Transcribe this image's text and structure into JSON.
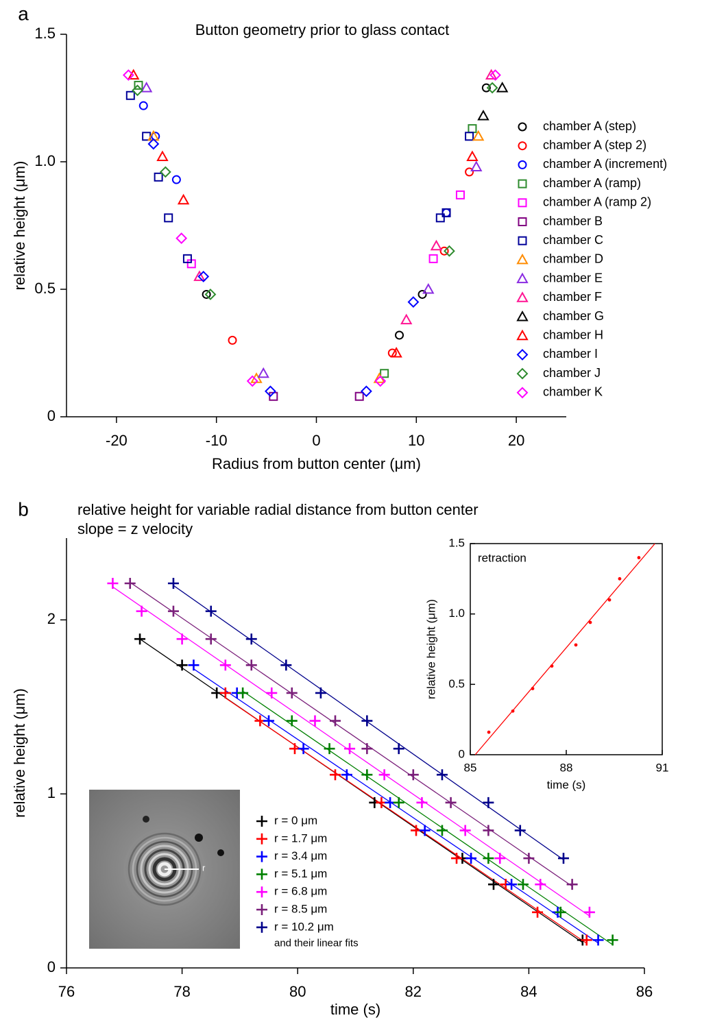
{
  "chart_data": [
    {
      "type": "scatter",
      "panel": "a",
      "title": "Button geometry prior to glass contact",
      "x_label": "Radius from button center (μm)",
      "y_label": "relative height (μm)",
      "xlim": [
        -25,
        25
      ],
      "ylim": [
        0,
        1.5
      ],
      "xticks": [
        -20,
        -10,
        0,
        10,
        20
      ],
      "yticks": [
        0,
        0.5,
        {
          "value": 1,
          "label": "1.0"
        },
        1.5
      ],
      "legend": "right",
      "series": [
        {
          "name": "chamber A (step)",
          "color": "#000000",
          "marker": "circle",
          "x": [
            -11.0,
            8.3,
            10.6,
            17.0
          ],
          "values": [
            0.48,
            0.32,
            0.48,
            1.29
          ]
        },
        {
          "name": "chamber A (step 2)",
          "color": "#ff0000",
          "marker": "circle",
          "x": [
            -8.4,
            7.6,
            12.8,
            15.3
          ],
          "values": [
            0.3,
            0.25,
            0.65,
            0.96
          ]
        },
        {
          "name": "chamber A (increment)",
          "color": "#0000ff",
          "marker": "circle",
          "x": [
            -14.0,
            -16.1,
            -17.3,
            13.0
          ],
          "values": [
            0.93,
            1.1,
            1.22,
            0.8
          ]
        },
        {
          "name": "chamber A (ramp)",
          "color": "#2e8b2e",
          "marker": "square",
          "x": [
            -17.8,
            6.8,
            15.6
          ],
          "values": [
            1.3,
            0.17,
            1.13
          ]
        },
        {
          "name": "chamber A (ramp 2)",
          "color": "#ff00ff",
          "marker": "square",
          "x": [
            -12.5,
            11.7,
            14.4
          ],
          "values": [
            0.6,
            0.62,
            0.87
          ]
        },
        {
          "name": "chamber B",
          "color": "#800080",
          "marker": "square",
          "x": [
            -4.3,
            4.3
          ],
          "values": [
            0.08,
            0.08
          ]
        },
        {
          "name": "chamber C",
          "color": "#000099",
          "marker": "square",
          "x": [
            -18.6,
            -17.0,
            -15.8,
            -14.8,
            -12.9,
            12.4,
            15.3,
            13.0
          ],
          "values": [
            1.26,
            1.1,
            0.94,
            0.78,
            0.62,
            0.78,
            1.1,
            0.8
          ]
        },
        {
          "name": "chamber D",
          "color": "#ff8c00",
          "marker": "triangle",
          "x": [
            -16.3,
            -6.0,
            6.3,
            16.2
          ],
          "values": [
            1.1,
            0.15,
            0.15,
            1.1
          ]
        },
        {
          "name": "chamber E",
          "color": "#8a2be2",
          "marker": "triangle",
          "x": [
            -17.0,
            -5.3,
            11.2,
            16.0
          ],
          "values": [
            1.29,
            0.17,
            0.5,
            0.98
          ]
        },
        {
          "name": "chamber F",
          "color": "#ff1493",
          "marker": "triangle",
          "x": [
            -11.7,
            9.0,
            12.0,
            17.5
          ],
          "values": [
            0.55,
            0.38,
            0.67,
            1.34
          ]
        },
        {
          "name": "chamber G",
          "color": "#000000",
          "marker": "triangle",
          "x": [
            18.6,
            16.7
          ],
          "values": [
            1.29,
            1.18
          ]
        },
        {
          "name": "chamber H",
          "color": "#ff0000",
          "marker": "triangle",
          "x": [
            -18.3,
            -15.4,
            -13.3,
            15.6,
            8.0
          ],
          "values": [
            1.34,
            1.02,
            0.85,
            1.02,
            0.25
          ]
        },
        {
          "name": "chamber I",
          "color": "#0000ff",
          "marker": "diamond",
          "x": [
            -4.6,
            -16.3,
            -11.3,
            5.0,
            9.7
          ],
          "values": [
            0.1,
            1.07,
            0.55,
            0.1,
            0.45
          ]
        },
        {
          "name": "chamber J",
          "color": "#2e8b2e",
          "marker": "diamond",
          "x": [
            -17.9,
            -15.1,
            -10.6,
            13.3,
            17.6
          ],
          "values": [
            1.28,
            0.96,
            0.48,
            0.65,
            1.29
          ]
        },
        {
          "name": "chamber K",
          "color": "#ff00ff",
          "marker": "diamond",
          "x": [
            -18.8,
            -13.5,
            -6.4,
            6.4,
            17.9
          ],
          "values": [
            1.34,
            0.7,
            0.14,
            0.14,
            1.34
          ]
        }
      ]
    },
    {
      "type": "scatter",
      "panel": "b",
      "title": "relative height for variable radial distance from button center",
      "subtitle": "slope = z velocity",
      "x_label": "time (s)",
      "y_label": "relative height (μm)",
      "xlim": [
        76,
        86
      ],
      "ylim": [
        0,
        2.47
      ],
      "xticks": [
        76,
        78,
        80,
        82,
        84,
        86
      ],
      "yticks": [
        0,
        1,
        2
      ],
      "legend": "lower center",
      "legend_note": "and their linear fits",
      "fit": true,
      "series": [
        {
          "name": "r = 0 μm",
          "color": "#000000",
          "marker": "plus",
          "x": [
            77.27,
            78.0,
            78.6,
            81.33,
            82.85,
            83.39,
            84.93
          ],
          "values": [
            1.89,
            1.74,
            1.58,
            0.95,
            0.63,
            0.48,
            0.16
          ]
        },
        {
          "name": "r = 1.7 μm",
          "color": "#ff0000",
          "marker": "plus",
          "x": [
            78.75,
            79.35,
            79.95,
            80.65,
            81.45,
            82.05,
            82.75,
            83.6,
            84.15,
            85.0
          ],
          "values": [
            1.58,
            1.42,
            1.26,
            1.11,
            0.95,
            0.79,
            0.63,
            0.48,
            0.32,
            0.16
          ]
        },
        {
          "name": "r = 3.4 μm",
          "color": "#0000ff",
          "marker": "plus",
          "x": [
            78.2,
            78.95,
            79.5,
            80.1,
            80.85,
            81.6,
            82.2,
            83.0,
            83.7,
            84.5,
            85.2
          ],
          "values": [
            1.74,
            1.58,
            1.42,
            1.26,
            1.11,
            0.95,
            0.79,
            0.63,
            0.48,
            0.32,
            0.16
          ]
        },
        {
          "name": "r = 5.1 μm",
          "color": "#008000",
          "marker": "plus",
          "x": [
            79.05,
            79.9,
            80.55,
            81.2,
            81.75,
            82.5,
            83.3,
            83.9,
            84.55,
            85.45
          ],
          "values": [
            1.58,
            1.42,
            1.26,
            1.11,
            0.95,
            0.79,
            0.63,
            0.48,
            0.32,
            0.16
          ]
        },
        {
          "name": "r = 6.8 μm",
          "color": "#ff00ff",
          "marker": "plus",
          "x": [
            76.8,
            77.3,
            78.0,
            78.75,
            79.55,
            80.3,
            80.9,
            81.5,
            82.15,
            82.9,
            83.5,
            84.2,
            85.05
          ],
          "values": [
            2.21,
            2.05,
            1.89,
            1.74,
            1.58,
            1.42,
            1.26,
            1.11,
            0.95,
            0.79,
            0.63,
            0.48,
            0.32
          ]
        },
        {
          "name": "r = 8.5 μm",
          "color": "#7a1f7a",
          "marker": "plus",
          "x": [
            77.1,
            77.85,
            78.5,
            79.2,
            79.9,
            80.65,
            81.2,
            82.0,
            82.65,
            83.3,
            84.0,
            84.75
          ],
          "values": [
            2.21,
            2.05,
            1.89,
            1.74,
            1.58,
            1.42,
            1.26,
            1.11,
            0.95,
            0.79,
            0.63,
            0.48
          ]
        },
        {
          "name": "r = 10.2 μm",
          "color": "#00008b",
          "marker": "plus",
          "x": [
            77.85,
            78.5,
            79.2,
            79.8,
            80.4,
            81.2,
            81.75,
            82.5,
            83.3,
            83.85,
            84.6
          ],
          "values": [
            2.21,
            2.05,
            1.89,
            1.74,
            1.58,
            1.42,
            1.26,
            1.11,
            0.95,
            0.79,
            0.63
          ]
        }
      ]
    },
    {
      "type": "scatter",
      "title": "retraction",
      "x_label": "time (s)",
      "y_label": "relative height (μm)",
      "xlim": [
        85,
        91
      ],
      "ylim": [
        0,
        1.5
      ],
      "xticks": [
        85,
        88,
        91
      ],
      "yticks": [
        0,
        0.5,
        {
          "value": 1,
          "label": "1.0"
        },
        1.5
      ],
      "fit": true,
      "series": [
        {
          "color": "#ff0000",
          "marker": "dot",
          "x": [
            85.58,
            86.33,
            86.95,
            87.55,
            88.3,
            88.75,
            89.35,
            89.67,
            90.27
          ],
          "values": [
            0.16,
            0.31,
            0.47,
            0.63,
            0.78,
            0.94,
            1.1,
            1.25,
            1.4
          ]
        }
      ]
    }
  ],
  "photo": {
    "label": "r"
  }
}
